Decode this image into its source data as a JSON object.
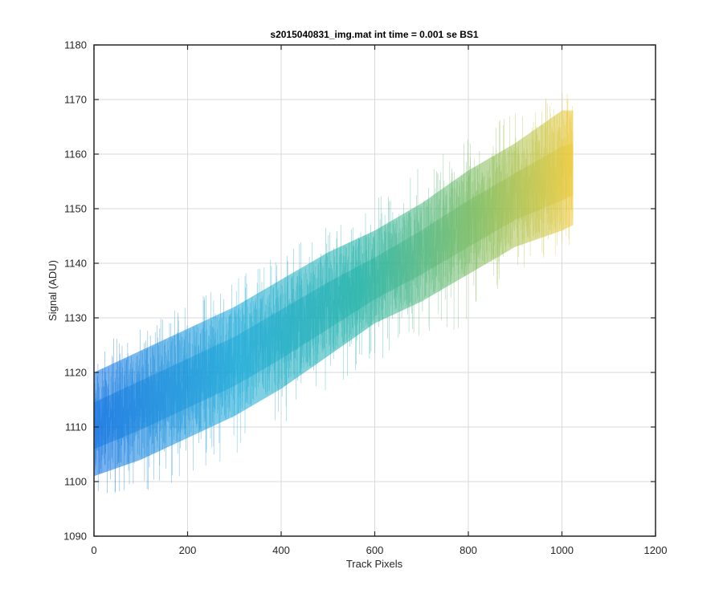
{
  "chart_data": {
    "type": "line",
    "title": "s2015040831_img.mat int time = 0.001 se   BS1",
    "xlabel": "Track Pixels",
    "ylabel": "Signal (ADU)",
    "xlim": [
      0,
      1200
    ],
    "ylim": [
      1090,
      1180
    ],
    "x_ticks": [
      0,
      200,
      400,
      600,
      800,
      1000,
      1200
    ],
    "y_ticks": [
      1090,
      1100,
      1110,
      1120,
      1130,
      1140,
      1150,
      1160,
      1170,
      1180
    ],
    "grid": true,
    "legend": "none",
    "colormap": "parula",
    "series_count_note": "many overlapping frames",
    "band": {
      "x": [
        0,
        100,
        200,
        300,
        400,
        500,
        600,
        700,
        800,
        900,
        1000,
        1024
      ],
      "lower": [
        1101,
        1104,
        1108,
        1112,
        1117,
        1123,
        1129,
        1133,
        1138,
        1143,
        1146,
        1147
      ],
      "center": [
        1110,
        1114,
        1118,
        1122,
        1127,
        1132,
        1137,
        1142,
        1147,
        1152,
        1156,
        1157
      ],
      "upper": [
        1120,
        1124,
        1128,
        1132,
        1137,
        1142,
        1146,
        1151,
        1157,
        1162,
        1168,
        1168
      ],
      "spike_min": [
        1097,
        1098,
        1100,
        1105,
        1110,
        1116,
        1122,
        1125,
        1129,
        1138,
        1142,
        1143
      ],
      "spike_max": [
        1125,
        1128,
        1133,
        1137,
        1142,
        1148,
        1152,
        1158,
        1163,
        1168,
        1172,
        1172
      ]
    },
    "colors": {
      "low": "#0a6fe0",
      "mid_low": "#16a7d6",
      "mid": "#1cb0a5",
      "mid_high": "#7dbb5a",
      "high": "#f0c832",
      "grid": "#d9d9d9",
      "axis": "#262626"
    }
  }
}
